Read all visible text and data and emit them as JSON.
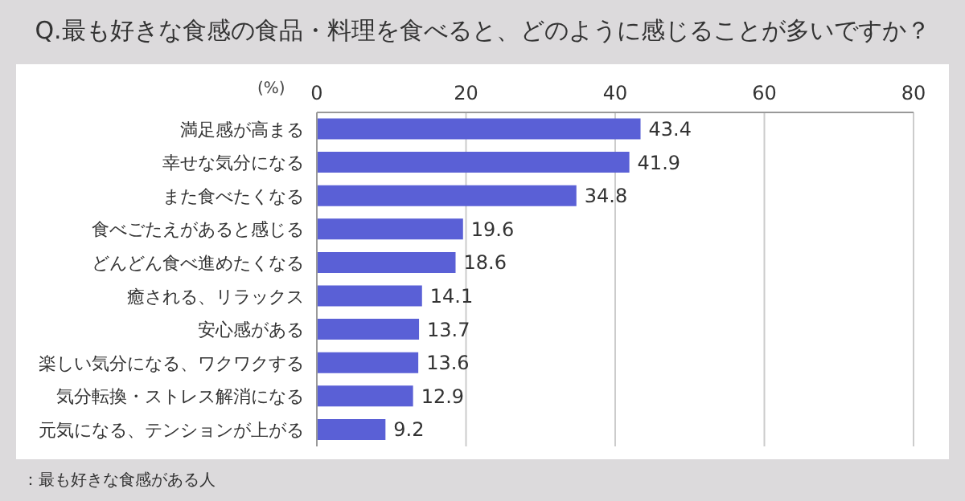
{
  "chart_data": {
    "type": "bar",
    "orientation": "horizontal",
    "title": "Q.最も好きな食感の食品・料理を食べると、どのように感じることが多いですか？",
    "xlabel": "(%)",
    "categories": [
      "満足感が高まる",
      "幸せな気分になる",
      "また食べたくなる",
      "食べごたえがあると感じる",
      "どんどん食べ進めたくなる",
      "癒される、リラックス",
      "安心感がある",
      "楽しい気分になる、ワクワクする",
      "気分転換・ストレス解消になる",
      "元気になる、テンションが上がる"
    ],
    "values": [
      43.4,
      41.9,
      34.8,
      19.6,
      18.6,
      14.1,
      13.7,
      13.6,
      12.9,
      9.2
    ],
    "color": "#5a60d6",
    "xlim": [
      0,
      80
    ],
    "xticks": [
      0,
      20,
      40,
      60,
      80
    ],
    "grid": "x",
    "data_labels": true,
    "annotations": [
      "：最も好きな食感がある人"
    ]
  }
}
